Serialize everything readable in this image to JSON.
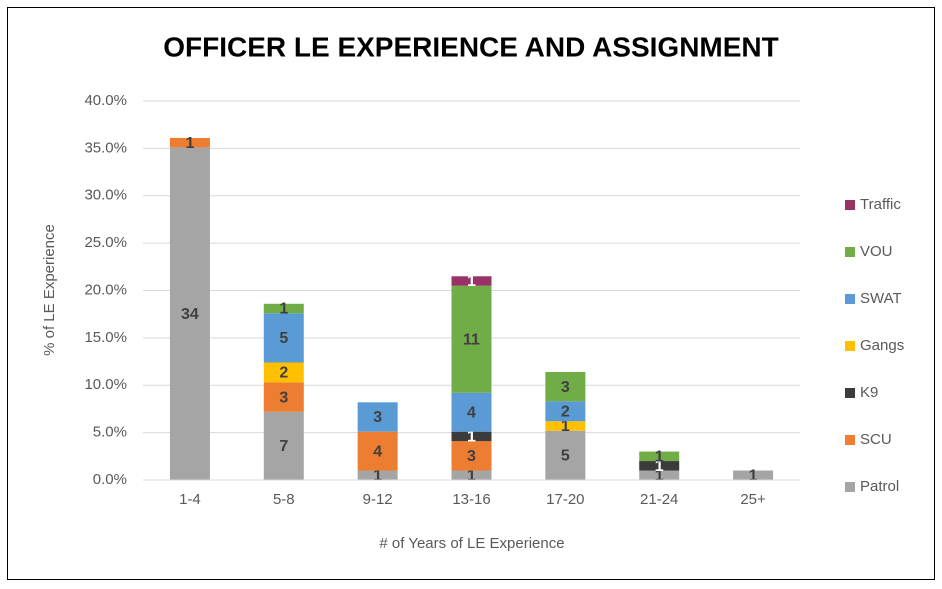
{
  "chart_data": {
    "type": "stacked_bar",
    "title": "OFFICER LE EXPERIENCE AND ASSIGNMENT",
    "x_label": "# of Years of LE Experience",
    "y_label": "% of LE Experience",
    "categories": [
      "1-4",
      "5-8",
      "9-12",
      "13-16",
      "17-20",
      "21-24",
      "25+"
    ],
    "series": [
      {
        "name": "Patrol",
        "color": "#a5a5a5",
        "label_color": "#404040",
        "values": [
          35.1,
          7.2,
          1.0,
          1.0,
          5.2,
          1.0,
          1.0
        ],
        "counts": [
          34,
          7,
          1,
          1,
          5,
          1,
          1
        ]
      },
      {
        "name": "SCU",
        "color": "#ed7d31",
        "label_color": "#404040",
        "values": [
          1.0,
          3.1,
          4.1,
          3.1,
          null,
          null,
          null
        ],
        "counts": [
          1,
          3,
          4,
          3,
          null,
          null,
          null
        ]
      },
      {
        "name": "K9",
        "color": "#3b3b3b",
        "label_color": "#ffffff",
        "values": [
          null,
          null,
          null,
          1.0,
          null,
          1.0,
          null
        ],
        "counts": [
          null,
          null,
          null,
          1,
          null,
          1,
          null
        ]
      },
      {
        "name": "Gangs",
        "color": "#ffc000",
        "label_color": "#404040",
        "values": [
          null,
          2.1,
          null,
          null,
          1.0,
          null,
          null
        ],
        "counts": [
          null,
          2,
          null,
          null,
          1,
          null,
          null
        ]
      },
      {
        "name": "SWAT",
        "color": "#5b9bd5",
        "label_color": "#404040",
        "values": [
          null,
          5.2,
          3.1,
          4.1,
          2.1,
          null,
          null
        ],
        "counts": [
          null,
          5,
          3,
          4,
          2,
          null,
          null
        ]
      },
      {
        "name": "VOU",
        "color": "#70ad47",
        "label_color": "#404040",
        "values": [
          null,
          1.0,
          null,
          11.3,
          3.1,
          1.0,
          null
        ],
        "counts": [
          null,
          1,
          null,
          11,
          3,
          1,
          null
        ]
      },
      {
        "name": "Traffic",
        "color": "#993366",
        "label_color": "#ffffff",
        "values": [
          null,
          null,
          null,
          1.0,
          null,
          null,
          null
        ],
        "counts": [
          null,
          null,
          null,
          1,
          null,
          null,
          null
        ]
      }
    ],
    "ylim": [
      0,
      40
    ],
    "yticks": [
      {
        "value": 0,
        "label": "0.0%"
      },
      {
        "value": 5,
        "label": "5.0%"
      },
      {
        "value": 10,
        "label": "10.0%"
      },
      {
        "value": 15,
        "label": "15.0%"
      },
      {
        "value": 20,
        "label": "20.0%"
      },
      {
        "value": 25,
        "label": "25.0%"
      },
      {
        "value": 30,
        "label": "30.0%"
      },
      {
        "value": 35,
        "label": "35.0%"
      },
      {
        "value": 40,
        "label": "40.0%"
      }
    ],
    "grid": true,
    "legend": "right"
  }
}
